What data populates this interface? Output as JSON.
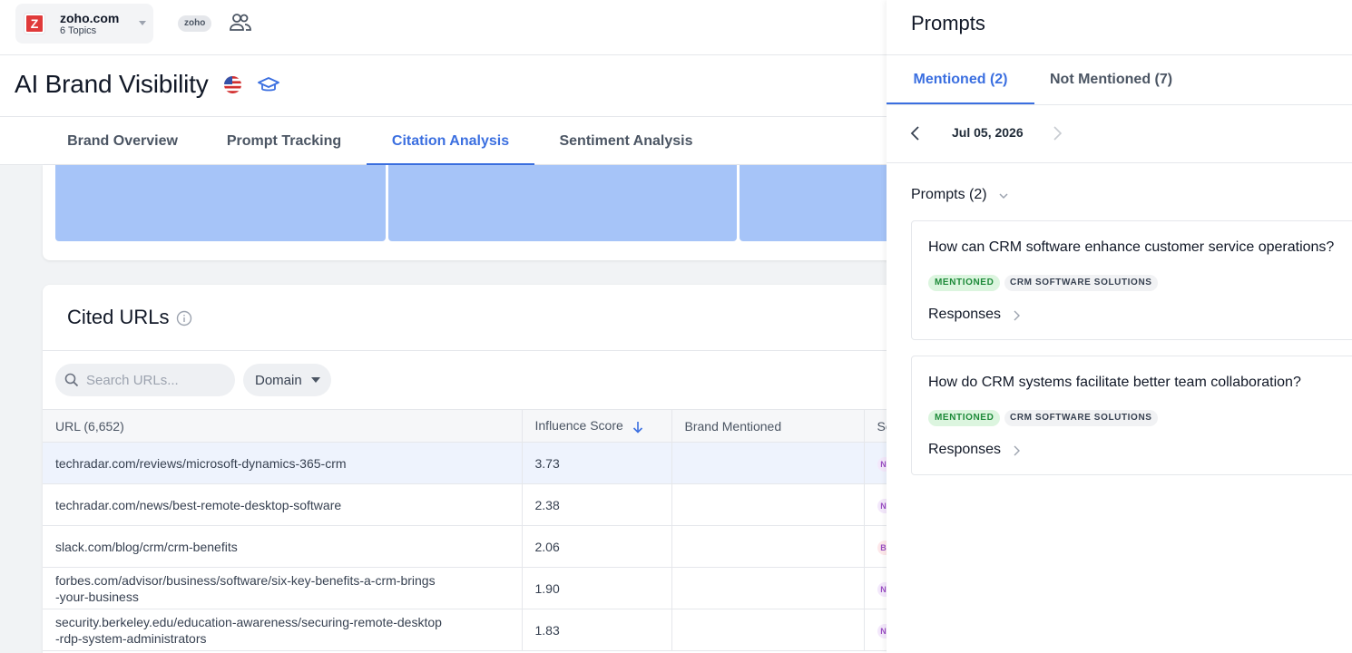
{
  "project": {
    "logo_letter": "Z",
    "name": "zoho.com",
    "subtitle": "6 Topics",
    "badge": "zoho"
  },
  "page": {
    "title": "AI Brand Visibility"
  },
  "tabs": [
    {
      "label": "Brand Overview"
    },
    {
      "label": "Prompt Tracking"
    },
    {
      "label": "Citation Analysis"
    },
    {
      "label": "Sentiment Analysis"
    }
  ],
  "active_tab": "Citation Analysis",
  "cited_urls": {
    "title": "Cited URLs",
    "search_placeholder": "Search URLs...",
    "domain_filter": "Domain",
    "columns": [
      "URL (6,652)",
      "Influence Score",
      "Brand Mentioned",
      "So"
    ],
    "rows": [
      {
        "url": "techradar.com/reviews/microsoft-dynamics-365-crm",
        "score": "3.73"
      },
      {
        "url": "techradar.com/news/best-remote-desktop-software",
        "score": "2.38"
      },
      {
        "url": "slack.com/blog/crm/crm-benefits",
        "score": "2.06"
      },
      {
        "url": "forbes.com/advisor/business/software/six-key-benefits-a-crm-brings\n-your-business",
        "score": "1.90"
      },
      {
        "url": "security.berkeley.edu/education-awareness/securing-remote-desktop\n-rdp-system-administrators",
        "score": "1.83"
      }
    ],
    "sentiment_partial": [
      "N",
      "N",
      "B",
      "N",
      "N"
    ]
  },
  "panel": {
    "title": "Prompts",
    "tabs": [
      {
        "label": "Mentioned (2)"
      },
      {
        "label": "Not Mentioned (7)"
      }
    ],
    "date": "Jul 05, 2026",
    "prompts_heading": "Prompts (2)",
    "prompts": [
      {
        "question": "How can CRM software enhance customer service operations?",
        "status": "MENTIONED",
        "topic": "CRM SOFTWARE SOLUTIONS",
        "responses_label": "Responses"
      },
      {
        "question": "How do CRM systems facilitate better team collaboration?",
        "status": "MENTIONED",
        "topic": "CRM SOFTWARE SOLUTIONS",
        "responses_label": "Responses"
      }
    ]
  },
  "colors": {
    "accent": "#3b6fe0",
    "treemap_tile": "#a6c4f8",
    "mentioned_bg": "#dcf5df",
    "mentioned_text": "#1d8a39"
  }
}
